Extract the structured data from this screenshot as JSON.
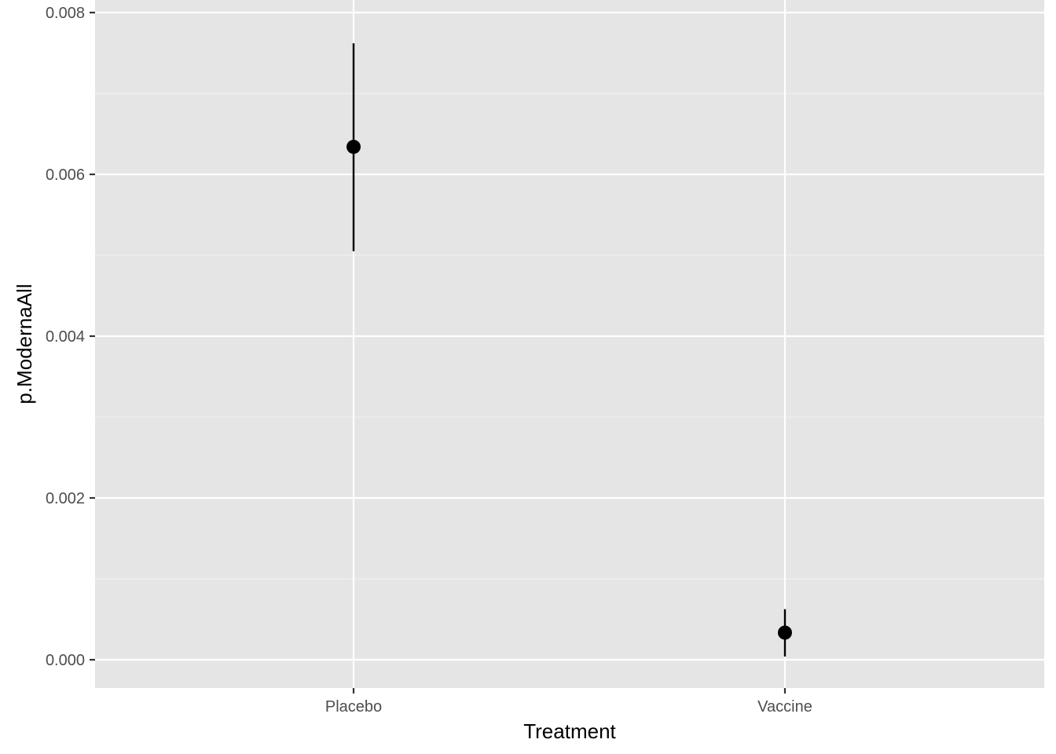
{
  "chart_data": {
    "type": "scatter",
    "title": "",
    "xlabel": "Treatment",
    "ylabel": "p.ModernaAll",
    "categories": [
      "Placebo",
      "Vaccine"
    ],
    "values": [
      0.00634,
      0.000335
    ],
    "lower": [
      0.00505,
      4e-05
    ],
    "upper": [
      0.00762,
      0.000625
    ],
    "ylim": [
      -0.00034,
      0.008
    ],
    "yticks": [
      0.0,
      0.002,
      0.004,
      0.006,
      0.008
    ],
    "ytick_labels": [
      "0.000",
      "0.002",
      "0.004",
      "0.006",
      "0.008"
    ],
    "grid": true,
    "legend": "none",
    "colors": {
      "panel_background": "#e5e5e5",
      "grid_major": "#ffffff",
      "grid_minor": "#f2f2f2",
      "marks": "#000000",
      "tick_text": "#4d4d4d",
      "axis_ticks": "#333333"
    }
  }
}
